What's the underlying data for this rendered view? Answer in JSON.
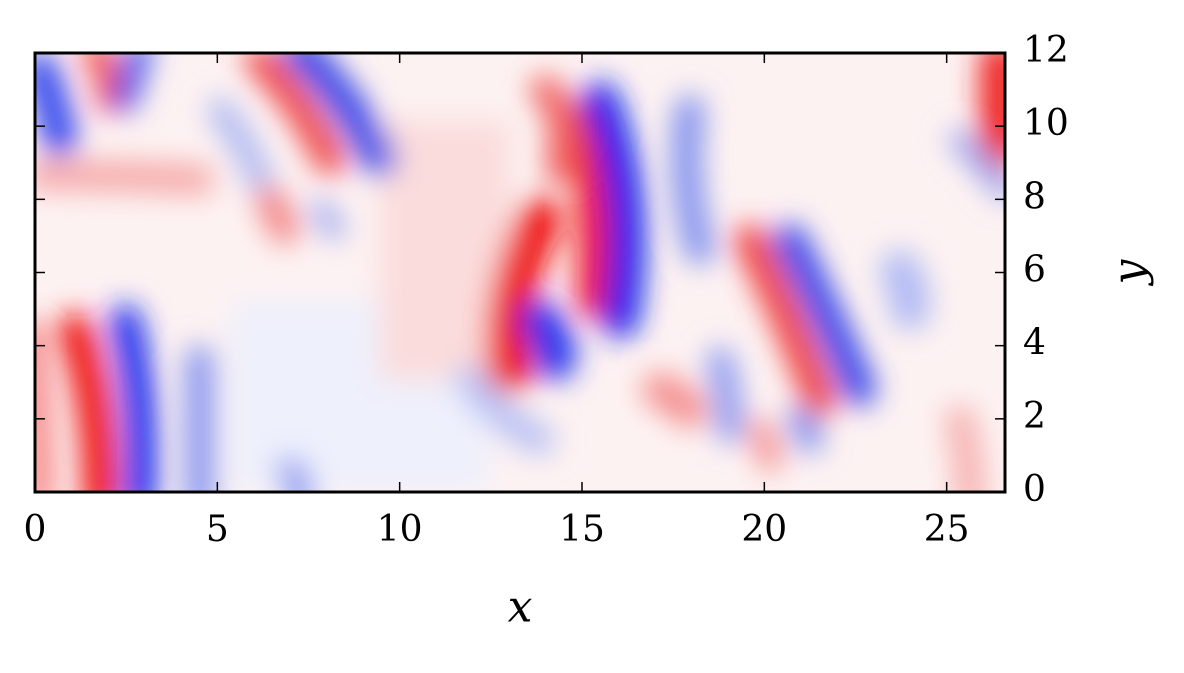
{
  "chart_data": {
    "type": "heatmap",
    "xlabel": "x",
    "ylabel": "y",
    "xlim": [
      0,
      26.6
    ],
    "xticks": [
      0,
      5,
      10,
      15,
      20,
      25
    ],
    "ylim": [
      0,
      12
    ],
    "yticks": [
      0,
      2,
      4,
      6,
      8,
      10,
      12
    ],
    "yaxis_side": "right"
  }
}
